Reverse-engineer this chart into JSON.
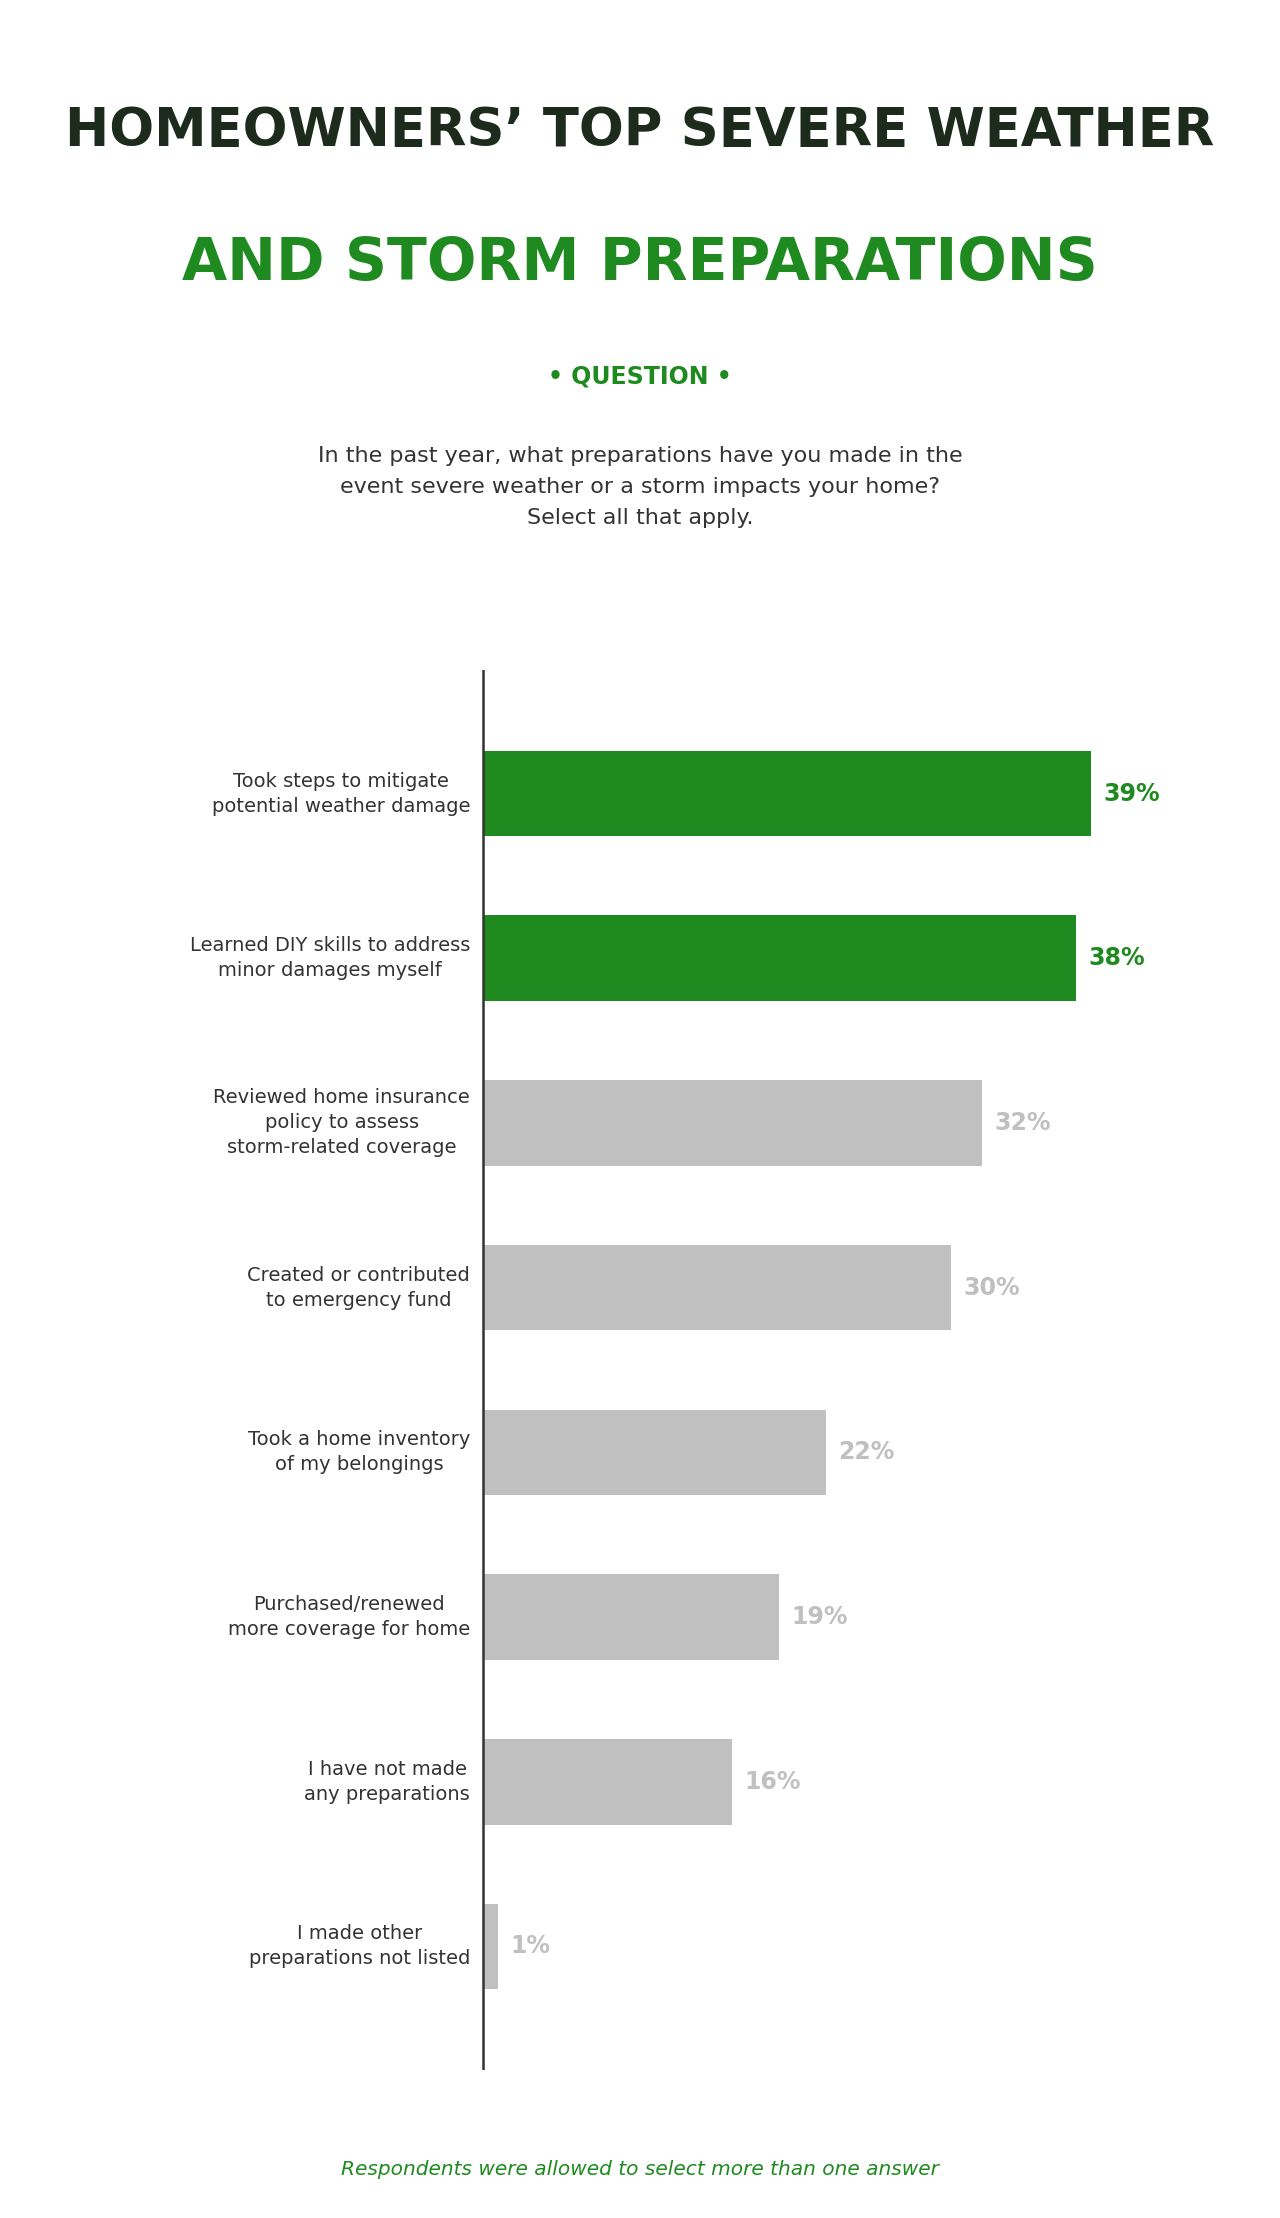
{
  "title_line1": "HOMEOWNERS’ TOP SEVERE WEATHER",
  "title_line2": "AND STORM PREPARATIONS",
  "title_line1_color": "#1c2b1c",
  "title_line2_color": "#1f8a1f",
  "question_header": "• QUESTION •",
  "question_text_line1": "In the past year, what preparations have you made in the",
  "question_text_line2": "event severe weather or a storm impacts your home?",
  "question_text_line3": "Select all that apply.",
  "question_box_color": "#e8e8e8",
  "question_header_color": "#1f8a1f",
  "question_text_color": "#333333",
  "categories": [
    "Took steps to mitigate\npotential weather damage",
    "Learned DIY skills to address\nminor damages myself",
    "Reviewed home insurance\npolicy to assess\nstorm-related coverage",
    "Created or contributed\nto emergency fund",
    "Took a home inventory\nof my belongings",
    "Purchased/renewed\nmore coverage for home",
    "I have not made\nany preparations",
    "I made other\npreparations not listed"
  ],
  "values": [
    39,
    38,
    32,
    30,
    22,
    19,
    16,
    1
  ],
  "bar_colors": [
    "#1f8a1f",
    "#1f8a1f",
    "#c0c0c0",
    "#c0c0c0",
    "#c0c0c0",
    "#c0c0c0",
    "#c0c0c0",
    "#c0c0c0"
  ],
  "value_colors": [
    "#1f8a1f",
    "#1f8a1f",
    "#c0c0c0",
    "#c0c0c0",
    "#c0c0c0",
    "#c0c0c0",
    "#c0c0c0",
    "#c0c0c0"
  ],
  "footnote": "Respondents were allowed to select more than one answer",
  "footnote_color": "#1f8a1f",
  "background_color": "#ffffff",
  "fig_width": 12.8,
  "fig_height": 22.18,
  "dpi": 100
}
